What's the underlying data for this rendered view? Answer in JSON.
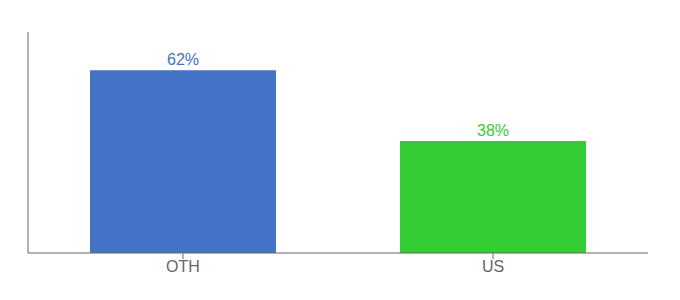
{
  "chart_data": {
    "type": "bar",
    "categories": [
      "OTH",
      "US"
    ],
    "values": [
      62,
      38
    ],
    "value_labels": [
      "62%",
      "38%"
    ],
    "data_labels": true,
    "colors": [
      "#4472c4",
      "#33cc33"
    ],
    "ylim": [
      0,
      75
    ],
    "tick_labels": "x"
  }
}
